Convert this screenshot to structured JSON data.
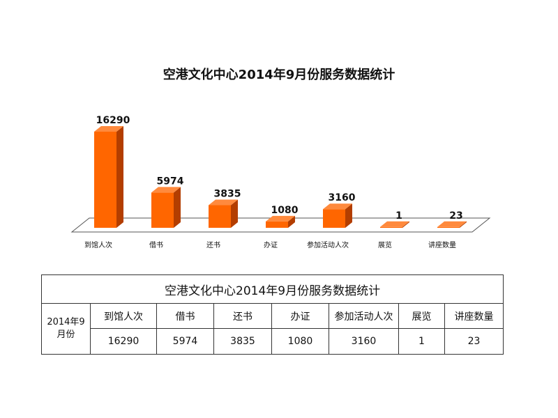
{
  "chart_data": {
    "type": "bar",
    "title": "空港文化中心2014年9月份服务数据统计",
    "categories": [
      "到馆人次",
      "借书",
      "还书",
      "办证",
      "参加活动人次",
      "展览",
      "讲座数量"
    ],
    "values": [
      16290,
      5974,
      3835,
      1080,
      3160,
      1,
      23
    ],
    "ylim": [
      0,
      17000
    ],
    "grid": false,
    "legend": "none",
    "bar_front_color": "#FF6600",
    "bar_side_color": "#B33E00",
    "bar_top_color": "#FF8A3D",
    "floor_color": "#FFFFFF"
  },
  "table": {
    "title": "空港文化中心2014年9月份服务数据统计",
    "row_header": "2014年9月份",
    "headers": [
      "到馆人次",
      "借书",
      "还书",
      "办证",
      "参加活动人次",
      "展览",
      "讲座数量"
    ],
    "values": [
      "16290",
      "5974",
      "3835",
      "1080",
      "3160",
      "1",
      "23"
    ]
  }
}
